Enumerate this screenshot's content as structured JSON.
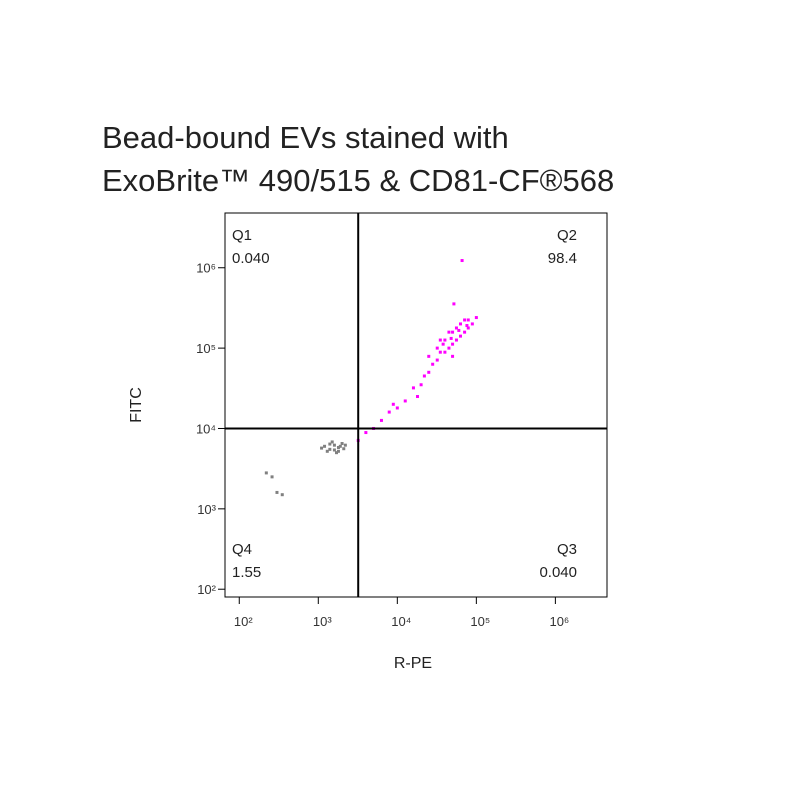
{
  "chart_data": {
    "type": "scatter",
    "title": [
      "Bead-bound EVs stained with",
      "ExoBrite™ 490/515 & CD81-CF®568"
    ],
    "x_label": "R-PE",
    "y_label": "FITC",
    "log_x": true,
    "log_y": true,
    "xlim": [
      66,
      4500000
    ],
    "ylim": [
      80,
      4800000
    ],
    "xticks": [
      {
        "value": 100,
        "label": "10²"
      },
      {
        "value": 1000,
        "label": "10³"
      },
      {
        "value": 10000,
        "label": "10⁴"
      },
      {
        "value": 100000,
        "label": "10⁵"
      },
      {
        "value": 1000000,
        "label": "10⁶"
      }
    ],
    "yticks": [
      {
        "value": 100,
        "label": "10²"
      },
      {
        "value": 1000,
        "label": "10³"
      },
      {
        "value": 10000,
        "label": "10⁴"
      },
      {
        "value": 100000,
        "label": "10⁵"
      },
      {
        "value": 1000000,
        "label": "10⁶"
      }
    ],
    "gates": {
      "x": 3200,
      "y": 10000,
      "color": "#000000"
    },
    "quadrants": [
      {
        "name": "Q1",
        "percent": {
          "value": 0.04,
          "label": "0.040"
        },
        "corner": "top-left"
      },
      {
        "name": "Q2",
        "percent": 98.4,
        "corner": "top-right"
      },
      {
        "name": "Q3",
        "percent": {
          "value": 0.04,
          "label": "0.040"
        },
        "corner": "bottom-right"
      },
      {
        "name": "Q4",
        "percent": 1.55,
        "corner": "bottom-left"
      }
    ],
    "series": [
      {
        "color": "#ff00ff",
        "x": [
          40000,
          50000,
          63000,
          79000,
          71000,
          56000,
          45000,
          35000,
          32000,
          28000,
          40000,
          50000,
          63000,
          79000,
          89000,
          100000,
          25000,
          22000,
          20000,
          16000,
          12600,
          10000,
          7900,
          6300,
          5000,
          4000,
          3200,
          18000,
          8900,
          35000,
          45000,
          56000,
          71000,
          50000,
          32000,
          25000,
          38000,
          48000,
          60000,
          76000,
          66000,
          52000
        ],
        "y": [
          126000,
          158000,
          200000,
          224000,
          158000,
          126000,
          100000,
          89000,
          71000,
          63000,
          89000,
          112000,
          141000,
          178000,
          200000,
          240000,
          50000,
          45000,
          35000,
          32000,
          22000,
          18000,
          16000,
          12600,
          10000,
          8900,
          7100,
          25000,
          20000,
          126000,
          158000,
          178000,
          224000,
          79000,
          100000,
          79000,
          112000,
          132000,
          166000,
          191000,
          1230000,
          355000
        ]
      },
      {
        "color": "#808080",
        "x": [
          1200,
          1400,
          1600,
          1800,
          2000,
          1300,
          1500,
          1700,
          1900,
          2100,
          1100,
          1600,
          1400,
          2200,
          1800,
          260,
          300,
          350,
          220
        ],
        "y": [
          6000,
          5500,
          6200,
          5800,
          6500,
          5200,
          6800,
          5000,
          6000,
          5600,
          5700,
          5400,
          6400,
          6200,
          5200,
          2500,
          1600,
          1500,
          2800
        ]
      }
    ]
  }
}
